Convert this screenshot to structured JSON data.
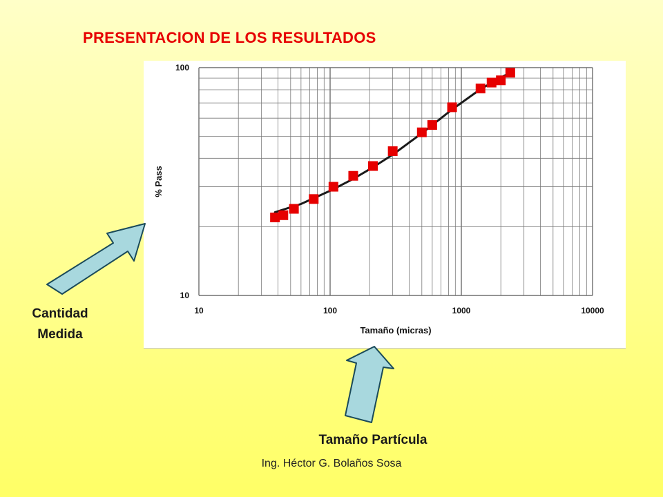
{
  "slide": {
    "title": "PRESENTACION DE LOS RESULTADOS",
    "callout_y": "Cantidad Medida",
    "callout_y_line1": "Cantidad",
    "callout_y_line2": "Medida",
    "callout_x": "Tamaño Partícula",
    "footer": "Ing. Héctor G. Bolaños Sosa",
    "colors": {
      "title": "#e60000",
      "arrow_fill": "#a8d8de",
      "arrow_stroke": "#1a4a5a",
      "marker": "#e60000",
      "trend": "#1a1a1a"
    }
  },
  "chart_data": {
    "type": "scatter",
    "xlabel": "Tamaño (micras)",
    "ylabel": "% Pass",
    "x_scale": "log",
    "y_scale": "log",
    "xlim": [
      10,
      10000
    ],
    "ylim": [
      10,
      100
    ],
    "x_ticks": [
      "10",
      "100",
      "1000",
      "10000"
    ],
    "y_ticks": [
      "10",
      "100"
    ],
    "grid": true,
    "series": [
      {
        "kind": "scatter",
        "marker": "square",
        "x": [
          38,
          44,
          53,
          75,
          106,
          150,
          212,
          300,
          500,
          600,
          850,
          1400,
          1700,
          2000,
          2360
        ],
        "y": [
          22,
          22.5,
          24,
          26.5,
          30,
          33.5,
          37,
          43,
          52,
          56,
          67,
          81,
          86,
          88,
          95
        ]
      },
      {
        "kind": "line",
        "x": [
          38,
          60,
          100,
          150,
          212,
          300,
          500,
          850,
          1400,
          2000,
          2360
        ],
        "y": [
          23.2,
          25.2,
          28.8,
          32.5,
          36.5,
          41.5,
          51.5,
          65.5,
          80.5,
          90.5,
          95
        ]
      }
    ]
  }
}
